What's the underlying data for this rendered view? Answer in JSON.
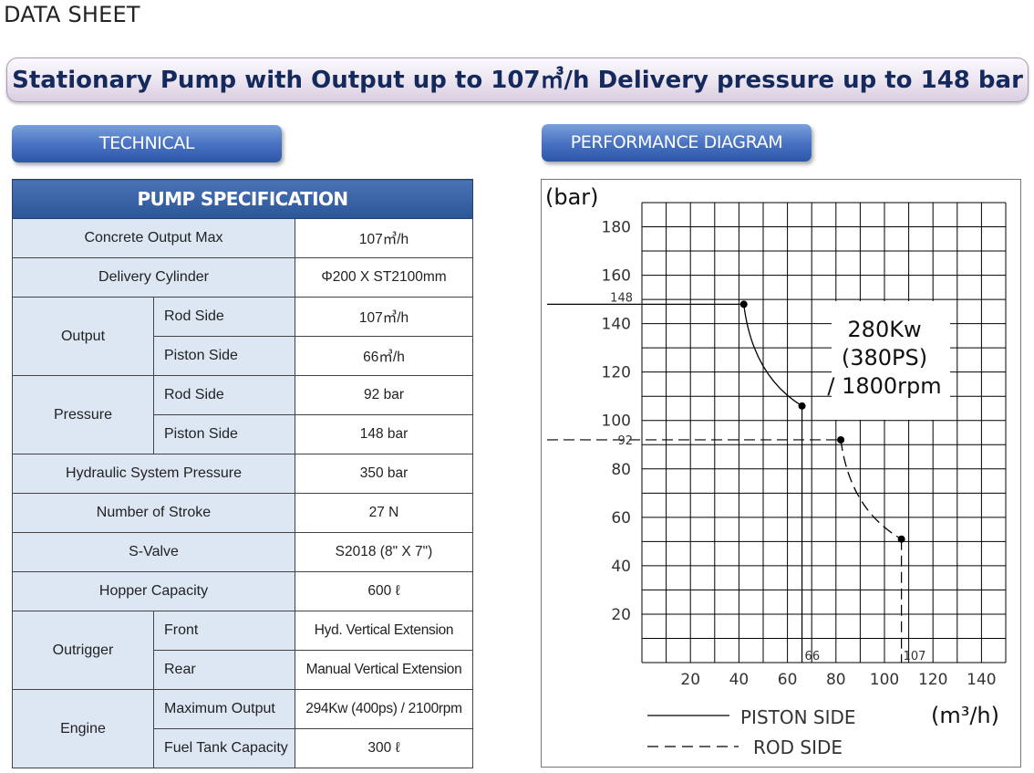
{
  "header": {
    "sheet_label": "DATA SHEET",
    "title": "Stationary Pump with Output up to 107㎥/h Delivery pressure up to 148 bar"
  },
  "sections": {
    "technical": "TECHNICAL",
    "performance": "PERFORMANCE DIAGRAM"
  },
  "spec_table": {
    "title": "PUMP SPECIFICATION",
    "rows": {
      "concrete_output_max": {
        "label": "Concrete Output Max",
        "value": "107㎥/h"
      },
      "delivery_cylinder": {
        "label": "Delivery Cylinder",
        "value": "Φ200 X ST2100mm"
      },
      "output": {
        "label": "Output",
        "rod_side": {
          "label": "Rod Side",
          "value": "107㎥/h"
        },
        "piston_side": {
          "label": "Piston Side",
          "value": "66㎥/h"
        }
      },
      "pressure": {
        "label": "Pressure",
        "rod_side": {
          "label": "Rod Side",
          "value": "92 bar"
        },
        "piston_side": {
          "label": "Piston Side",
          "value": "148 bar"
        }
      },
      "hydraulic_system_pressure": {
        "label": "Hydraulic System Pressure",
        "value": "350 bar"
      },
      "number_of_stroke": {
        "label": "Number of Stroke",
        "value": "27 N"
      },
      "s_valve": {
        "label": "S-Valve",
        "value": "S2018 (8\" X 7\")"
      },
      "hopper_capacity": {
        "label": "Hopper Capacity",
        "value": "600 ℓ"
      },
      "outrigger": {
        "label": "Outrigger",
        "front": {
          "label": "Front",
          "value": "Hyd. Vertical Extension"
        },
        "rear": {
          "label": "Rear",
          "value": "Manual Vertical Extension"
        }
      },
      "engine": {
        "label": "Engine",
        "maximum_output": {
          "label": "Maximum Output",
          "value": "294Kw (400ps) / 2100rpm"
        },
        "fuel_tank_capacity": {
          "label": "Fuel Tank Capacity",
          "value": "300 ℓ"
        }
      }
    }
  },
  "chart_data": {
    "type": "line",
    "ylabel": "(bar)",
    "xlabel": "(m³/h)",
    "xlim": [
      0,
      150
    ],
    "ylim": [
      0,
      190
    ],
    "x_ticks": [
      20,
      40,
      60,
      80,
      100,
      120,
      140
    ],
    "y_ticks": [
      20,
      40,
      60,
      80,
      100,
      120,
      140,
      160,
      180
    ],
    "grid": true,
    "annotation": [
      "280Kw",
      "(380PS)",
      "/ 1800rpm"
    ],
    "series": [
      {
        "name": "PISTON SIDE",
        "style": "solid",
        "x": [
          42,
          66
        ],
        "y": [
          148,
          106
        ]
      },
      {
        "name": "ROD SIDE",
        "style": "dashed",
        "x": [
          82,
          107
        ],
        "y": [
          92,
          51
        ]
      }
    ],
    "reference_marks": {
      "y": [
        {
          "label": "148",
          "value": 148
        },
        {
          "label": "92",
          "value": 92
        }
      ],
      "x": [
        {
          "label": "66",
          "value": 66
        },
        {
          "label": "107",
          "value": 107
        }
      ]
    },
    "legend": {
      "position": "bottom",
      "entries": [
        "PISTON  SIDE",
        "ROD  SIDE"
      ]
    },
    "colors": {
      "line": "#000000",
      "grid": "#000000"
    }
  }
}
